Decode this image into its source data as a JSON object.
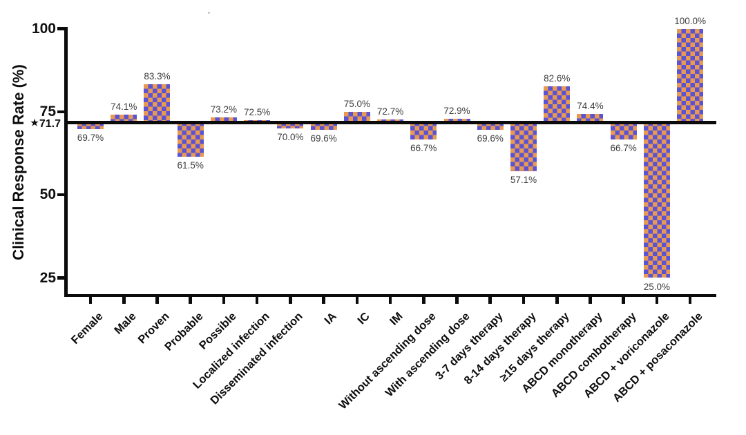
{
  "chart_data": {
    "type": "bar",
    "title": "",
    "xlabel": "",
    "ylabel": "Clinical Response Rate (%)",
    "ylim": [
      25,
      100
    ],
    "grid": false,
    "legend": null,
    "yticks": [
      100,
      75,
      50,
      25
    ],
    "ytick_labels": [
      "100",
      "75",
      "50",
      "25"
    ],
    "baseline": {
      "value": 71.7,
      "marker": "★",
      "label": "71.7"
    },
    "categories": [
      "Female",
      "Male",
      "Proven",
      "Probable",
      "Possible",
      "Localized infection",
      "Disseminated infection",
      "IA",
      "IC",
      "IM",
      "Without ascending dose",
      "With ascending dose",
      "3-7 days therapy",
      "8-14 days therapy",
      "≥15 days therapy",
      "ABCD monotherapy",
      "ABCD combotherapy",
      "ABCD + voriconazole",
      "ABCD + posaconazole"
    ],
    "values": [
      69.7,
      74.1,
      83.3,
      61.5,
      73.2,
      72.5,
      70.0,
      69.6,
      75.0,
      72.7,
      66.7,
      72.9,
      69.6,
      57.1,
      82.6,
      74.4,
      66.7,
      25.0,
      100.0
    ],
    "value_labels": [
      "69.7%",
      "74.1%",
      "83.3%",
      "61.5%",
      "73.2%",
      "72.5%",
      "70.0%",
      "69.6%",
      "75.0%",
      "72.7%",
      "66.7%",
      "72.9%",
      "69.6%",
      "57.1%",
      "82.6%",
      "74.4%",
      "66.7%",
      "25.0%",
      "100.0%"
    ],
    "bar_pattern": {
      "color_orange": "#E99A52",
      "color_blue": "#5B53D3"
    },
    "axis_color": "#0b0b0b"
  }
}
